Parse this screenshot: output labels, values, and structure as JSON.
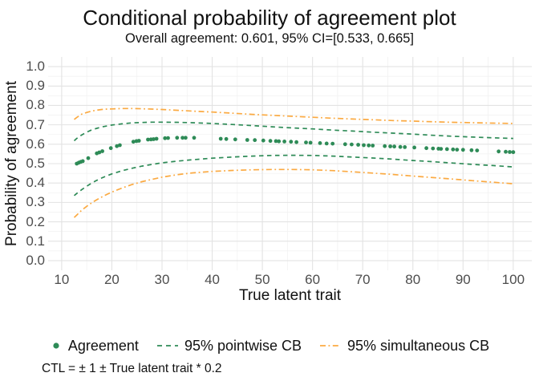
{
  "chart_data": {
    "type": "scatter",
    "title": "Conditional probability of agreement plot",
    "subtitle": "Overall agreement: 0.601, 95% CI=[0.533, 0.665]",
    "caption": "CTL = ± 1 ± True latent trait * 0.2",
    "xlabel": "True latent trait",
    "ylabel": "Probability of agreement",
    "xlim": [
      7.3,
      103.7
    ],
    "ylim": [
      -0.05,
      1.05
    ],
    "x_ticks": [
      10,
      20,
      30,
      40,
      50,
      60,
      70,
      80,
      90,
      100
    ],
    "x_tick_labels": [
      "10",
      "20",
      "30",
      "40",
      "50",
      "60",
      "70",
      "80",
      "90",
      "100"
    ],
    "x_minor": [
      15,
      25,
      35,
      45,
      55,
      65,
      75,
      85,
      95
    ],
    "y_ticks": [
      0.0,
      0.1,
      0.2,
      0.3,
      0.4,
      0.5,
      0.6,
      0.7,
      0.8,
      0.9,
      1.0
    ],
    "y_tick_labels": [
      "0.0",
      "0.1",
      "0.2",
      "0.3",
      "0.4",
      "0.5",
      "0.6",
      "0.7",
      "0.8",
      "0.9",
      "1.0"
    ],
    "y_minor": [
      0.05,
      0.15,
      0.25,
      0.35,
      0.45,
      0.55,
      0.65,
      0.75,
      0.85,
      0.95
    ],
    "grid": {
      "major": "#E3E3E3",
      "minor": "#F2F2F2",
      "background": "#FFFFFF"
    },
    "colors": {
      "agreement": "#2E8B57",
      "pointwise": "#2E8B57",
      "simultaneous": "#FBAA42"
    },
    "legend_position": "bottom",
    "series": [
      {
        "name": "Agreement",
        "type": "point",
        "color_key": "agreement",
        "points": [
          [
            13.0,
            0.5
          ],
          [
            13.4,
            0.505
          ],
          [
            13.8,
            0.509
          ],
          [
            14.2,
            0.513
          ],
          [
            15.3,
            0.528
          ],
          [
            17.0,
            0.553
          ],
          [
            17.5,
            0.558
          ],
          [
            18.1,
            0.564
          ],
          [
            19.8,
            0.58
          ],
          [
            21.0,
            0.59
          ],
          [
            21.6,
            0.595
          ],
          [
            24.3,
            0.613
          ],
          [
            24.9,
            0.616
          ],
          [
            25.4,
            0.618
          ],
          [
            27.2,
            0.624
          ],
          [
            27.8,
            0.625
          ],
          [
            28.3,
            0.626
          ],
          [
            28.9,
            0.628
          ],
          [
            30.6,
            0.631
          ],
          [
            31.2,
            0.632
          ],
          [
            33.0,
            0.633
          ],
          [
            34.1,
            0.633
          ],
          [
            34.7,
            0.633
          ],
          [
            36.4,
            0.633
          ],
          [
            41.7,
            0.628
          ],
          [
            42.8,
            0.627
          ],
          [
            44.6,
            0.625
          ],
          [
            47.0,
            0.622
          ],
          [
            48.5,
            0.621
          ],
          [
            50.2,
            0.619
          ],
          [
            51.6,
            0.617
          ],
          [
            52.7,
            0.616
          ],
          [
            53.3,
            0.615
          ],
          [
            54.4,
            0.614
          ],
          [
            55.7,
            0.613
          ],
          [
            56.8,
            0.611
          ],
          [
            58.7,
            0.609
          ],
          [
            59.6,
            0.608
          ],
          [
            61.5,
            0.606
          ],
          [
            62.8,
            0.604
          ],
          [
            64.0,
            0.603
          ],
          [
            66.5,
            0.6
          ],
          [
            67.8,
            0.599
          ],
          [
            69.1,
            0.597
          ],
          [
            70.2,
            0.595
          ],
          [
            71.2,
            0.594
          ],
          [
            72.0,
            0.593
          ],
          [
            74.4,
            0.59
          ],
          [
            75.5,
            0.589
          ],
          [
            76.3,
            0.588
          ],
          [
            77.5,
            0.586
          ],
          [
            78.4,
            0.585
          ],
          [
            80.3,
            0.583
          ],
          [
            82.7,
            0.58
          ],
          [
            84.0,
            0.578
          ],
          [
            85.1,
            0.577
          ],
          [
            85.6,
            0.576
          ],
          [
            86.8,
            0.575
          ],
          [
            88.0,
            0.573
          ],
          [
            88.8,
            0.572
          ],
          [
            90.0,
            0.571
          ],
          [
            91.7,
            0.569
          ],
          [
            92.8,
            0.568
          ],
          [
            97.1,
            0.563
          ],
          [
            98.5,
            0.561
          ],
          [
            99.3,
            0.56
          ],
          [
            100.0,
            0.559
          ]
        ]
      },
      {
        "name": "95% pointwise CB",
        "type": "dashed-line",
        "color_key": "pointwise",
        "upper": [
          [
            12.5,
            0.618
          ],
          [
            13,
            0.63
          ],
          [
            14,
            0.648
          ],
          [
            15,
            0.662
          ],
          [
            16,
            0.674
          ],
          [
            17,
            0.682
          ],
          [
            18,
            0.689
          ],
          [
            19,
            0.694
          ],
          [
            20,
            0.699
          ],
          [
            22,
            0.705
          ],
          [
            24,
            0.71
          ],
          [
            26,
            0.712
          ],
          [
            28,
            0.714
          ],
          [
            30,
            0.714
          ],
          [
            33,
            0.713
          ],
          [
            36,
            0.711
          ],
          [
            40,
            0.707
          ],
          [
            44,
            0.702
          ],
          [
            48,
            0.696
          ],
          [
            52,
            0.69
          ],
          [
            56,
            0.684
          ],
          [
            60,
            0.679
          ],
          [
            64,
            0.673
          ],
          [
            68,
            0.668
          ],
          [
            72,
            0.662
          ],
          [
            76,
            0.657
          ],
          [
            80,
            0.652
          ],
          [
            84,
            0.646
          ],
          [
            88,
            0.641
          ],
          [
            92,
            0.637
          ],
          [
            96,
            0.633
          ],
          [
            100,
            0.63
          ]
        ],
        "lower": [
          [
            12.5,
            0.335
          ],
          [
            13,
            0.346
          ],
          [
            14,
            0.366
          ],
          [
            15,
            0.384
          ],
          [
            16,
            0.4
          ],
          [
            17,
            0.414
          ],
          [
            18,
            0.426
          ],
          [
            19,
            0.437
          ],
          [
            20,
            0.447
          ],
          [
            22,
            0.463
          ],
          [
            24,
            0.476
          ],
          [
            26,
            0.487
          ],
          [
            28,
            0.496
          ],
          [
            30,
            0.504
          ],
          [
            33,
            0.513
          ],
          [
            36,
            0.52
          ],
          [
            40,
            0.528
          ],
          [
            44,
            0.534
          ],
          [
            48,
            0.539
          ],
          [
            52,
            0.542
          ],
          [
            56,
            0.543
          ],
          [
            60,
            0.542
          ],
          [
            64,
            0.539
          ],
          [
            68,
            0.534
          ],
          [
            72,
            0.529
          ],
          [
            76,
            0.523
          ],
          [
            80,
            0.516
          ],
          [
            84,
            0.51
          ],
          [
            88,
            0.503
          ],
          [
            92,
            0.496
          ],
          [
            96,
            0.49
          ],
          [
            100,
            0.483
          ]
        ]
      },
      {
        "name": "95% simultaneous CB",
        "type": "dashdot-line",
        "color_key": "simultaneous",
        "upper": [
          [
            12.5,
            0.728
          ],
          [
            13,
            0.738
          ],
          [
            14,
            0.755
          ],
          [
            15,
            0.764
          ],
          [
            16,
            0.771
          ],
          [
            17,
            0.776
          ],
          [
            18,
            0.779
          ],
          [
            19,
            0.781
          ],
          [
            20,
            0.782
          ],
          [
            22,
            0.784
          ],
          [
            24,
            0.784
          ],
          [
            26,
            0.783
          ],
          [
            28,
            0.781
          ],
          [
            30,
            0.779
          ],
          [
            33,
            0.775
          ],
          [
            36,
            0.771
          ],
          [
            40,
            0.766
          ],
          [
            44,
            0.76
          ],
          [
            48,
            0.754
          ],
          [
            52,
            0.749
          ],
          [
            56,
            0.744
          ],
          [
            60,
            0.739
          ],
          [
            64,
            0.734
          ],
          [
            68,
            0.73
          ],
          [
            72,
            0.726
          ],
          [
            76,
            0.722
          ],
          [
            80,
            0.719
          ],
          [
            84,
            0.716
          ],
          [
            88,
            0.713
          ],
          [
            92,
            0.711
          ],
          [
            96,
            0.709
          ],
          [
            100,
            0.707
          ]
        ],
        "lower": [
          [
            12.5,
            0.222
          ],
          [
            13,
            0.235
          ],
          [
            14,
            0.26
          ],
          [
            15,
            0.28
          ],
          [
            16,
            0.298
          ],
          [
            17,
            0.314
          ],
          [
            18,
            0.328
          ],
          [
            19,
            0.341
          ],
          [
            20,
            0.353
          ],
          [
            22,
            0.374
          ],
          [
            24,
            0.392
          ],
          [
            26,
            0.407
          ],
          [
            28,
            0.419
          ],
          [
            30,
            0.43
          ],
          [
            33,
            0.443
          ],
          [
            36,
            0.452
          ],
          [
            40,
            0.46
          ],
          [
            44,
            0.465
          ],
          [
            48,
            0.468
          ],
          [
            52,
            0.47
          ],
          [
            56,
            0.47
          ],
          [
            60,
            0.468
          ],
          [
            64,
            0.464
          ],
          [
            68,
            0.458
          ],
          [
            72,
            0.451
          ],
          [
            76,
            0.444
          ],
          [
            80,
            0.436
          ],
          [
            84,
            0.428
          ],
          [
            88,
            0.42
          ],
          [
            92,
            0.412
          ],
          [
            96,
            0.404
          ],
          [
            100,
            0.396
          ]
        ]
      }
    ]
  }
}
